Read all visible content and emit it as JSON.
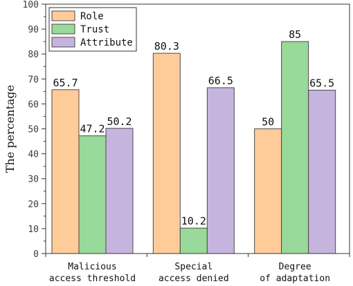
{
  "chart_data": {
    "type": "bar",
    "title": "",
    "xlabel": "",
    "ylabel": "The percentage",
    "ylim": [
      0,
      100
    ],
    "yticks": [
      0,
      10,
      20,
      30,
      40,
      50,
      60,
      70,
      80,
      90,
      100
    ],
    "grid": false,
    "legend_position": "top-left",
    "categories": [
      [
        "Malicious",
        "access threshold"
      ],
      [
        "Special",
        "access denied"
      ],
      [
        "Degree",
        "of adaptation"
      ]
    ],
    "series": [
      {
        "name": "Role",
        "color": "#FFCC99",
        "values": [
          65.7,
          80.3,
          50
        ],
        "labels": [
          "65.7",
          "80.3",
          "50"
        ]
      },
      {
        "name": "Trust",
        "color": "#99D99A",
        "values": [
          47.2,
          10.2,
          85
        ],
        "labels": [
          "47.2",
          "10.2",
          "85"
        ]
      },
      {
        "name": "Attribute",
        "color": "#C5B4DD",
        "values": [
          50.2,
          66.5,
          65.5
        ],
        "labels": [
          "50.2",
          "66.5",
          "65.5"
        ]
      }
    ]
  }
}
